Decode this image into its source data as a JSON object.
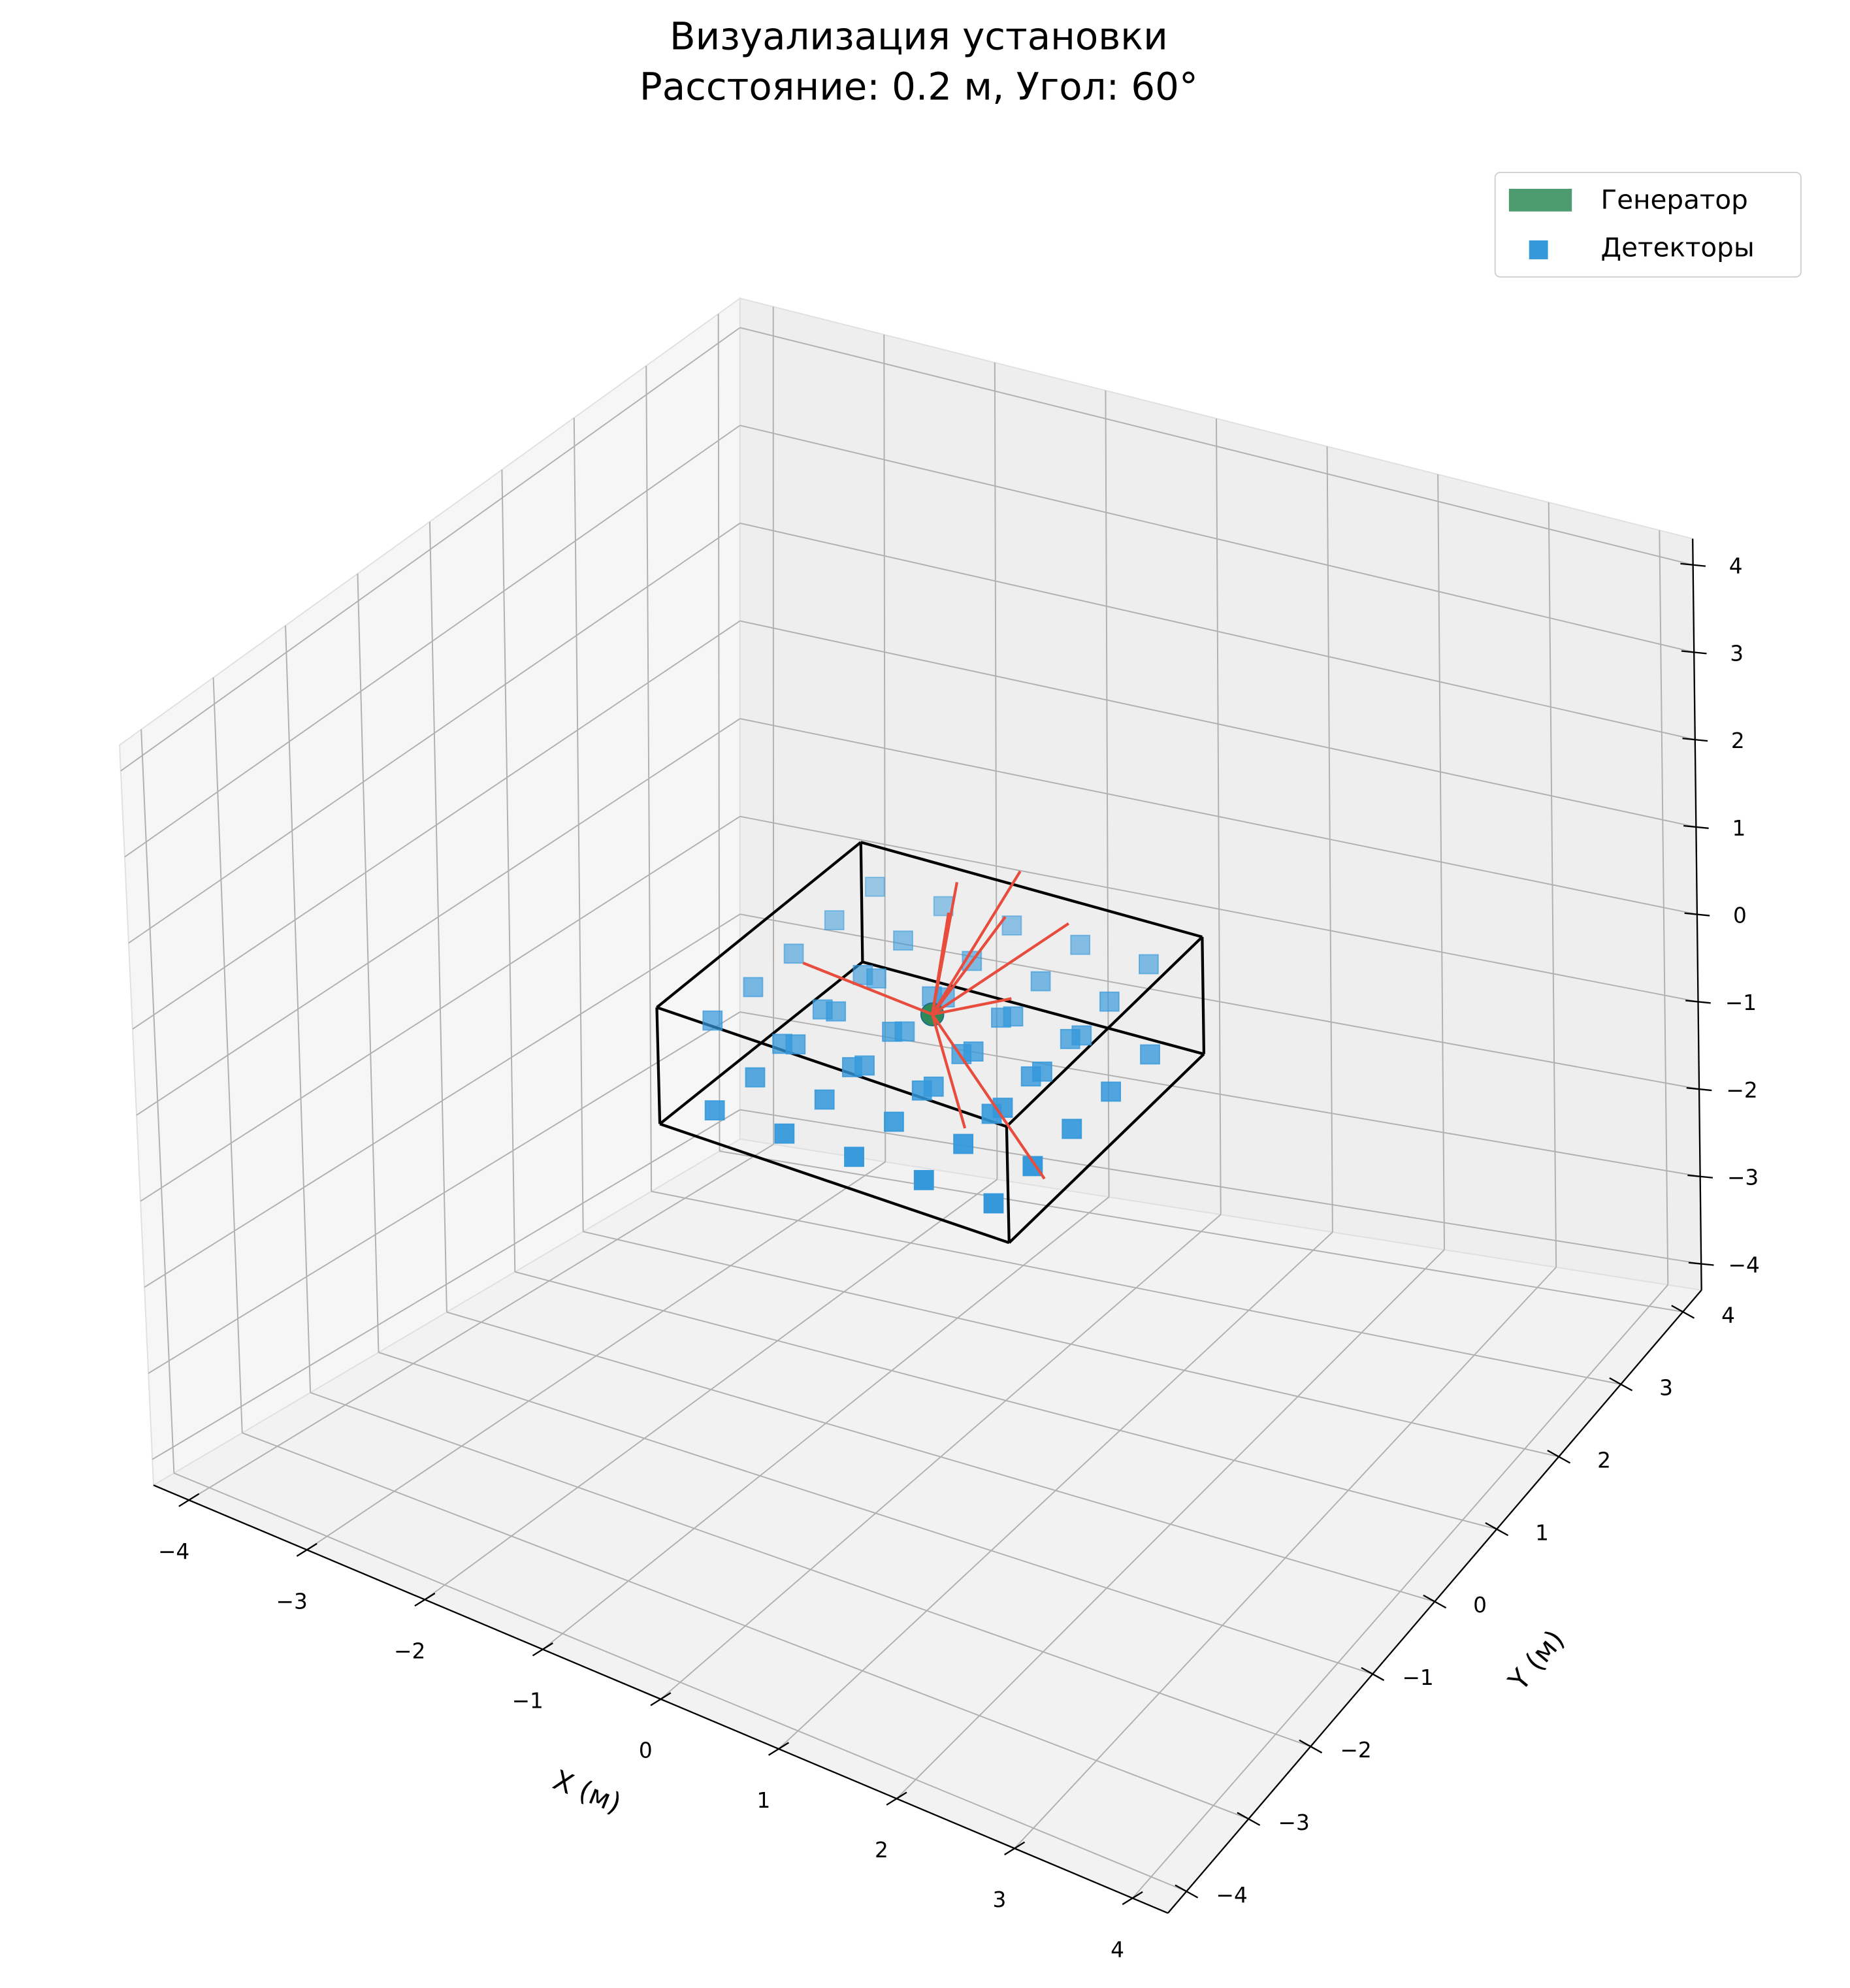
{
  "chart_data": {
    "type": "scatter3d",
    "title": "Визуализация установки",
    "subtitle": "Расстояние: 0.2 м, Угол: 60°",
    "xlabel": "X (м)",
    "ylabel": "Y (м)",
    "xlim": [
      -4.3,
      4.3
    ],
    "ylim": [
      -4.3,
      4.3
    ],
    "zlim": [
      -4.3,
      4.3
    ],
    "xticks": [
      {
        "value": -4,
        "label": "−4"
      },
      {
        "value": -3,
        "label": "−3"
      },
      {
        "value": -2,
        "label": "−2"
      },
      {
        "value": -1,
        "label": "−1"
      },
      0,
      1,
      2,
      3,
      4
    ],
    "yticks": [
      {
        "value": -4,
        "label": "−4"
      },
      {
        "value": -3,
        "label": "−3"
      },
      {
        "value": -2,
        "label": "−2"
      },
      {
        "value": -1,
        "label": "−1"
      },
      0,
      1,
      2,
      3,
      4
    ],
    "zticks": [
      {
        "value": -4,
        "label": "−4"
      },
      {
        "value": -3,
        "label": "−3"
      },
      {
        "value": -2,
        "label": "−2"
      },
      {
        "value": -1,
        "label": "−1"
      },
      0,
      1,
      2,
      3,
      4
    ],
    "grid": true,
    "legend": "upper right",
    "series": [
      {
        "name": "Генератор",
        "color": "#2e8b57",
        "marker": "sphere",
        "x": [
          0
        ],
        "y": [
          0
        ],
        "z": [
          0.6
        ]
      },
      {
        "name": "Детекторы",
        "color": "#3498db",
        "marker": "square",
        "x": [
          -1.2,
          -1.2,
          -1.2,
          -1.2,
          -1.2,
          -0.6,
          -0.6,
          -0.6,
          -0.6,
          -0.6,
          0,
          0,
          0,
          0,
          0,
          0.6,
          0.6,
          0.6,
          0.6,
          0.6,
          1.2,
          1.2,
          1.2,
          1.2,
          1.2,
          -1.2,
          -1.2,
          -1.2,
          -1.2,
          -1.2,
          -0.6,
          -0.6,
          -0.6,
          -0.6,
          -0.6,
          0,
          0,
          0,
          0,
          0,
          0.6,
          0.6,
          0.6,
          0.6,
          0.6,
          1.2,
          1.2,
          1.2,
          1.2,
          1.2
        ],
        "y": [
          -1.2,
          -0.6,
          0,
          0.6,
          1.2,
          -1.2,
          -0.6,
          0,
          0.6,
          1.2,
          -1.2,
          -0.6,
          0,
          0.6,
          1.2,
          -1.2,
          -0.6,
          0,
          0.6,
          1.2,
          -1.2,
          -0.6,
          0,
          0.6,
          1.2,
          -1.2,
          -0.6,
          0,
          0.6,
          1.2,
          -1.2,
          -0.6,
          0,
          0.6,
          1.2,
          -1.2,
          -0.6,
          0,
          0.6,
          1.2,
          -1.2,
          -0.6,
          0,
          0.6,
          1.2,
          -1.2,
          -0.6,
          0,
          0.6,
          1.2
        ],
        "z": [
          0.8,
          0.8,
          0.8,
          0.8,
          0.8,
          0.8,
          0.8,
          0.8,
          0.8,
          0.8,
          0.8,
          0.8,
          0.8,
          0.8,
          0.8,
          0.8,
          0.8,
          0.8,
          0.8,
          0.8,
          0.8,
          0.8,
          0.8,
          0.8,
          0.8,
          -0.2,
          -0.2,
          -0.2,
          -0.2,
          -0.2,
          -0.2,
          -0.2,
          -0.2,
          -0.2,
          -0.2,
          -0.2,
          -0.2,
          -0.2,
          -0.2,
          -0.2,
          -0.2,
          -0.2,
          -0.2,
          -0.2,
          -0.2,
          -0.2,
          -0.2,
          -0.2,
          -0.2,
          -0.2
        ]
      }
    ],
    "box": {
      "color": "#000000",
      "x": [
        -1.5,
        1.5
      ],
      "y": [
        -1.5,
        1.5
      ],
      "z": [
        -0.3,
        1
      ]
    },
    "rays": {
      "color": "#e74c3c",
      "x": [
        0.0,
        0.1,
        0.2,
        0.3,
        0.5,
        -1.0,
        0.5,
        1.3,
        0.4
      ],
      "y": [
        0.4,
        0.1,
        1.0,
        0.6,
        1.2,
        -0.2,
        -0.4,
        -0.6,
        0.5
      ],
      "z": [
        1.8,
        1.7,
        1.6,
        1.4,
        1.0,
        0.9,
        -0.2,
        -0.3,
        0.6
      ]
    }
  }
}
